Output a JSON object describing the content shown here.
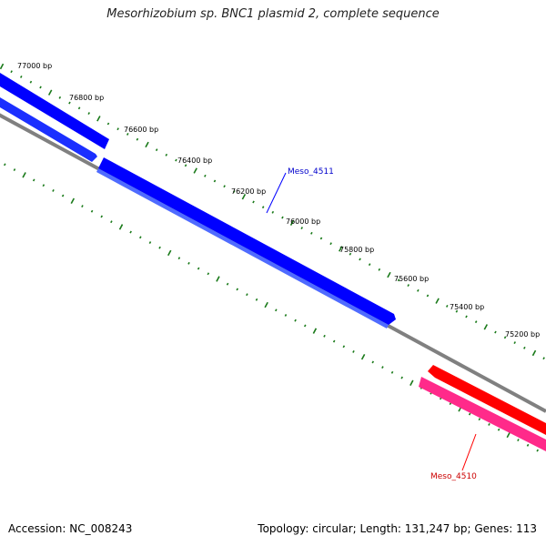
{
  "title": "Mesorhizobium sp. BNC1 plasmid 2, complete sequence",
  "colors": {
    "background": "#ffffff",
    "backbone": "#808080",
    "forward_gene": "#0000ff",
    "forward_gene_light": "#4f6bff",
    "reverse_gene": "#ff0000",
    "reverse_gene_pink": "#ff3399",
    "tick": "#1a7a1a",
    "forward_label": "#0000cc",
    "reverse_label": "#cc0000"
  },
  "ruler": {
    "labels": [
      "77000 bp",
      "76800 bp",
      "76600 bp",
      "76400 bp",
      "76200 bp",
      "76000 bp",
      "75800 bp",
      "75600 bp",
      "75400 bp",
      "75200 bp"
    ]
  },
  "genes": [
    {
      "name": "Meso_4511",
      "strand": "forward",
      "labelled": true
    },
    {
      "name": "Meso_4510",
      "strand": "reverse",
      "labelled": true
    }
  ],
  "footer": {
    "accession": "Accession: NC_008243",
    "stats": "Topology: circular; Length: 131,247 bp; Genes: 113"
  }
}
